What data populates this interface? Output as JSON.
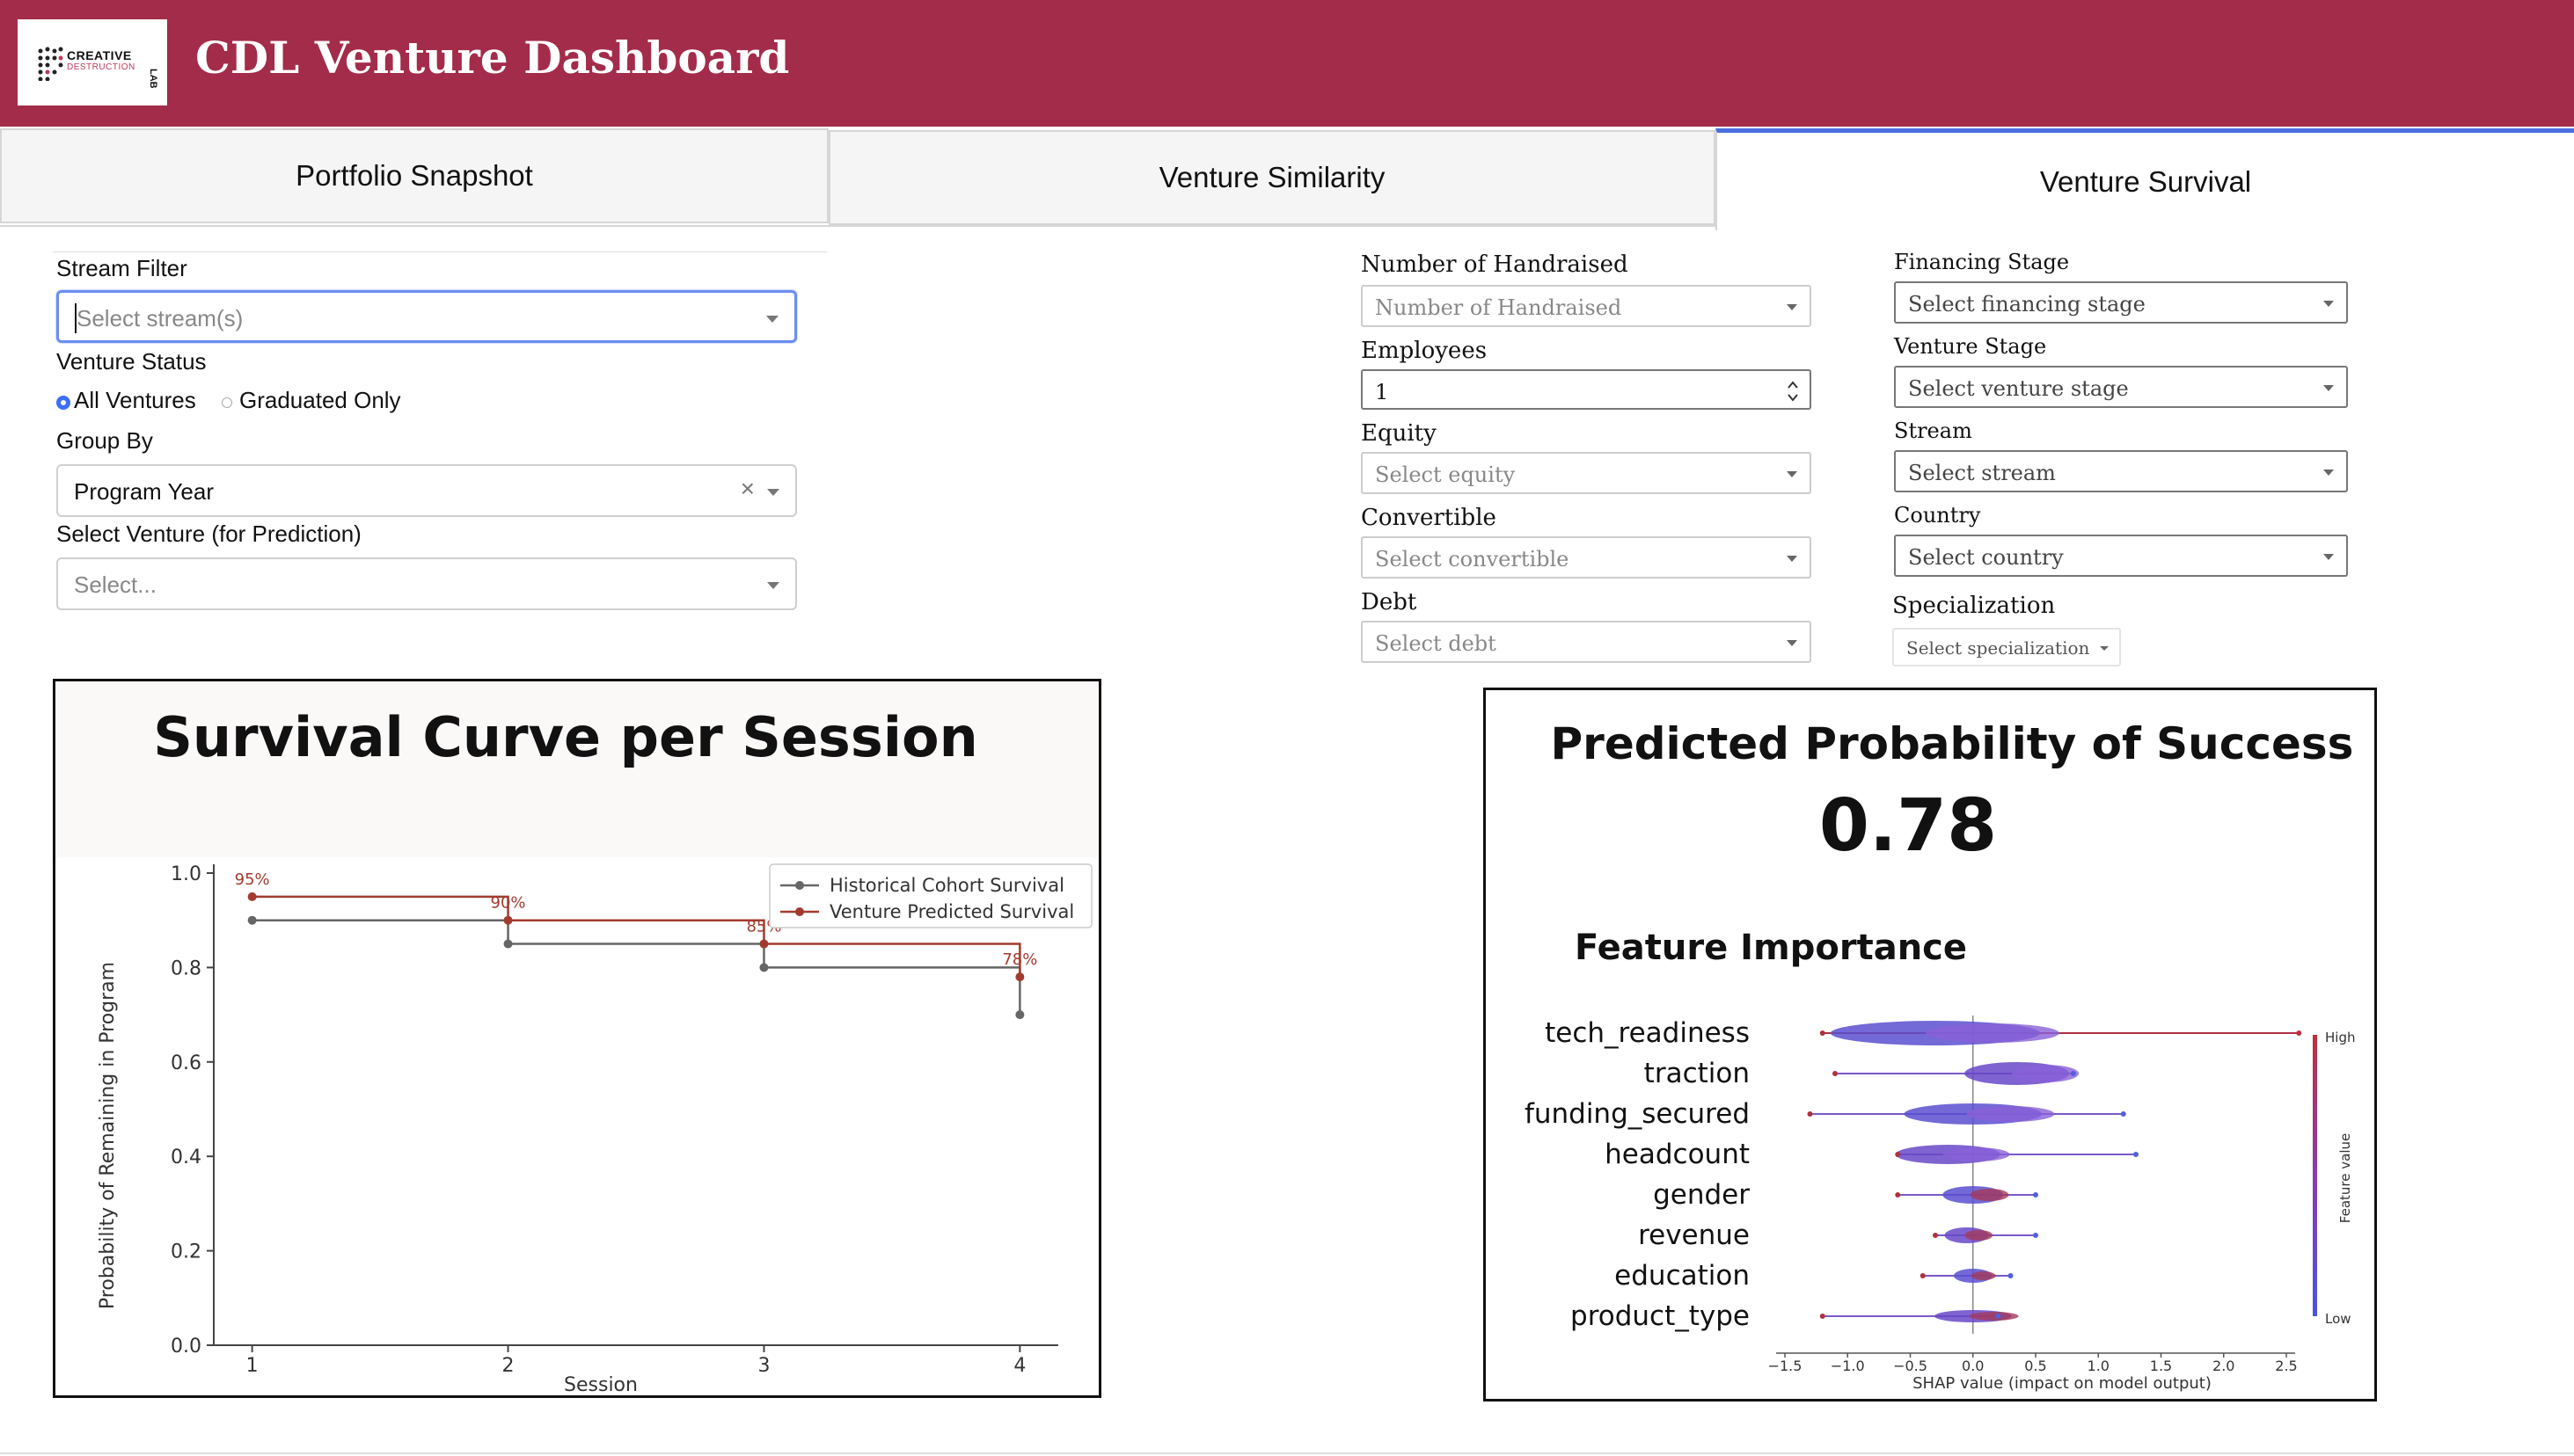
{
  "header": {
    "logo_line1": "CREATIVE",
    "logo_line2": "DESTRUCTION",
    "logo_line3": "LAB",
    "title": "CDL Venture Dashboard",
    "bg_color": "#a32c4a"
  },
  "tabs": [
    {
      "label": "Portfolio Snapshot",
      "active": false
    },
    {
      "label": "Venture Similarity",
      "active": false
    },
    {
      "label": "Venture Survival",
      "active": true
    }
  ],
  "left_form": {
    "stream_filter": {
      "label": "Stream Filter",
      "placeholder": "Select stream(s)"
    },
    "venture_status": {
      "label": "Venture Status",
      "options": [
        "All Ventures",
        "Graduated Only"
      ],
      "selected": "All Ventures"
    },
    "group_by": {
      "label": "Group By",
      "value": "Program Year",
      "clear_symbol": "×"
    },
    "select_venture": {
      "label": "Select Venture (for Prediction)",
      "placeholder": "Select..."
    }
  },
  "right_form": {
    "handraised": {
      "label": "Number of Handraised",
      "placeholder": "Number of Handraised"
    },
    "employees": {
      "label": "Employees",
      "value": "1"
    },
    "equity": {
      "label": "Equity",
      "placeholder": "Select equity"
    },
    "convertible": {
      "label": "Convertible",
      "placeholder": "Select convertible"
    },
    "debt": {
      "label": "Debt",
      "placeholder": "Select debt"
    },
    "financing_stage": {
      "label": "Financing Stage",
      "placeholder": "Select financing stage"
    },
    "venture_stage": {
      "label": "Venture Stage",
      "placeholder": "Select venture stage"
    },
    "stream": {
      "label": "Stream",
      "placeholder": "Select stream"
    },
    "country": {
      "label": "Country",
      "placeholder": "Select country"
    },
    "specialization": {
      "label": "Specialization",
      "placeholder": "Select specialization"
    }
  },
  "chart_data": [
    {
      "type": "line",
      "step": true,
      "title": "Survival Curve per Session",
      "xlabel": "Session",
      "ylabel": "Probability of Remaining in Program",
      "x": [
        1,
        2,
        3,
        4
      ],
      "x_ticks": [
        "1",
        "2",
        "3",
        "4"
      ],
      "y_ticks": [
        "0.0",
        "0.2",
        "0.4",
        "0.6",
        "0.8",
        "1.0"
      ],
      "ylim": [
        0,
        1.0
      ],
      "legend_position": "top-right",
      "grid": false,
      "series": [
        {
          "name": "Historical Cohort Survival",
          "values": [
            0.9,
            0.85,
            0.8,
            0.7
          ],
          "color": "#666666"
        },
        {
          "name": "Venture Predicted Survival",
          "values": [
            0.95,
            0.9,
            0.85,
            0.78
          ],
          "color": "#a23b2e",
          "data_labels": [
            "95%",
            "90%",
            "85%",
            "78%"
          ]
        }
      ]
    },
    {
      "type": "scatter",
      "subtype": "shap-beeswarm",
      "title": "Predicted Probability of Success",
      "score": "0.78",
      "subtitle": "Feature Importance",
      "xlabel": "SHAP value (impact on model output)",
      "x_ticks": [
        "−1.5",
        "−1.0",
        "−0.5",
        "0.0",
        "0.5",
        "1.0",
        "1.5",
        "2.0",
        "2.5"
      ],
      "xlim": [
        -1.5,
        2.5
      ],
      "features": [
        "tech_readiness",
        "traction",
        "funding_secured",
        "headcount",
        "gender",
        "revenue",
        "education",
        "product_type"
      ],
      "feature_ranges": [
        {
          "min": -1.2,
          "max": 2.6,
          "center": -0.3
        },
        {
          "min": -1.1,
          "max": 0.8,
          "center": 0.35
        },
        {
          "min": -1.3,
          "max": 1.2,
          "center": 0.0
        },
        {
          "min": -0.6,
          "max": 1.3,
          "center": -0.2
        },
        {
          "min": -0.6,
          "max": 0.5,
          "center": 0.0
        },
        {
          "min": -0.3,
          "max": 0.5,
          "center": -0.05
        },
        {
          "min": -0.4,
          "max": 0.3,
          "center": 0.0
        },
        {
          "min": -1.2,
          "max": 0.2,
          "center": 0.0
        }
      ],
      "colorbar": {
        "label": "Feature value",
        "high": "High",
        "low": "Low",
        "high_color": "#c0303a",
        "low_color": "#4a55e0"
      }
    }
  ]
}
